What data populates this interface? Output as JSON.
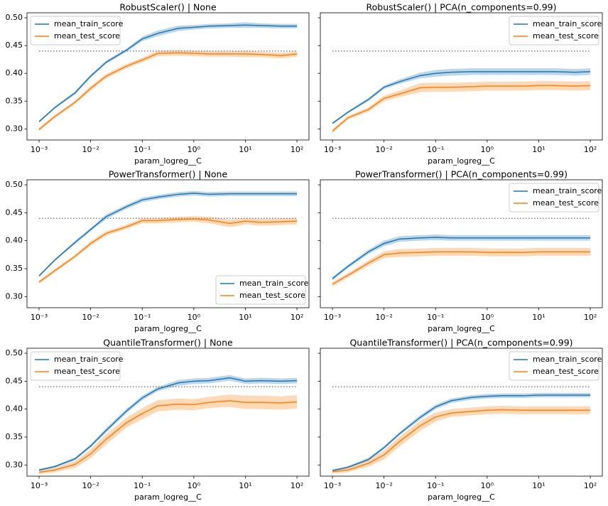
{
  "chart_data": [
    {
      "type": "line",
      "title": "RobustScaler() | None",
      "xlabel": "param_logreg__C",
      "xscale": "log",
      "legend": "upper left",
      "ytick_labels": true,
      "x": [
        0.001,
        0.002,
        0.005,
        0.01,
        0.02,
        0.05,
        0.1,
        0.2,
        0.5,
        1,
        2,
        5,
        10,
        20,
        50,
        100
      ],
      "xlim": [
        0.000583,
        171
      ],
      "ylim": [
        0.28,
        0.509
      ],
      "xticks": [
        {
          "value": 0.001,
          "label": "10⁻³"
        },
        {
          "value": 0.01,
          "label": "10⁻²"
        },
        {
          "value": 0.1,
          "label": "10⁻¹"
        },
        {
          "value": 1,
          "label": "10⁰"
        },
        {
          "value": 10,
          "label": "10¹"
        },
        {
          "value": 100,
          "label": "10²"
        }
      ],
      "yticks": [
        {
          "value": 0.3,
          "label": "0.30"
        },
        0.35,
        {
          "value": 0.4,
          "label": "0.40"
        },
        0.45,
        {
          "value": 0.5,
          "label": "0.50"
        }
      ],
      "hline": 0.44,
      "series": [
        {
          "name": "mean_train_score",
          "color": "#1f77b4",
          "values": [
            0.313,
            0.338,
            0.365,
            0.395,
            0.42,
            0.442,
            0.462,
            0.472,
            0.481,
            0.483,
            0.485,
            0.486,
            0.487,
            0.486,
            0.485,
            0.485
          ],
          "error": [
            0.002,
            0.002,
            0.003,
            0.003,
            0.003,
            0.003,
            0.004,
            0.005,
            0.005,
            0.004,
            0.004,
            0.004,
            0.005,
            0.004,
            0.004,
            0.004
          ]
        },
        {
          "name": "mean_test_score",
          "color": "#ff7f0e",
          "values": [
            0.299,
            0.322,
            0.348,
            0.373,
            0.395,
            0.413,
            0.424,
            0.436,
            0.437,
            0.436,
            0.435,
            0.435,
            0.435,
            0.434,
            0.432,
            0.435
          ],
          "error": [
            0.003,
            0.003,
            0.003,
            0.004,
            0.004,
            0.004,
            0.004,
            0.005,
            0.005,
            0.005,
            0.005,
            0.005,
            0.006,
            0.005,
            0.005,
            0.005
          ]
        }
      ]
    },
    {
      "type": "line",
      "title": "RobustScaler() | PCA(n_components=0.99)",
      "xlabel": "param_logreg__C",
      "xscale": "log",
      "legend": "upper right",
      "ytick_labels": false,
      "x": [
        0.001,
        0.002,
        0.005,
        0.01,
        0.02,
        0.05,
        0.1,
        0.2,
        0.5,
        1,
        2,
        5,
        10,
        20,
        50,
        100
      ],
      "xlim": [
        0.000583,
        171
      ],
      "ylim": [
        0.28,
        0.509
      ],
      "xticks": [
        {
          "value": 0.001,
          "label": "10⁻³"
        },
        {
          "value": 0.01,
          "label": "10⁻²"
        },
        {
          "value": 0.1,
          "label": "10⁻¹"
        },
        {
          "value": 1,
          "label": "10⁰"
        },
        {
          "value": 10,
          "label": "10¹"
        },
        {
          "value": 100,
          "label": "10²"
        }
      ],
      "yticks": [
        0.3,
        0.35,
        0.4,
        0.45,
        0.5
      ],
      "hline": 0.44,
      "series": [
        {
          "name": "mean_train_score",
          "color": "#1f77b4",
          "values": [
            0.31,
            0.33,
            0.353,
            0.375,
            0.385,
            0.396,
            0.4,
            0.402,
            0.403,
            0.403,
            0.403,
            0.403,
            0.403,
            0.403,
            0.402,
            0.403
          ],
          "error": [
            0.002,
            0.002,
            0.003,
            0.003,
            0.004,
            0.005,
            0.006,
            0.006,
            0.006,
            0.006,
            0.006,
            0.006,
            0.006,
            0.006,
            0.006,
            0.006
          ]
        },
        {
          "name": "mean_test_score",
          "color": "#ff7f0e",
          "values": [
            0.296,
            0.32,
            0.335,
            0.355,
            0.363,
            0.374,
            0.375,
            0.375,
            0.376,
            0.377,
            0.377,
            0.377,
            0.378,
            0.378,
            0.377,
            0.378
          ],
          "error": [
            0.003,
            0.003,
            0.004,
            0.005,
            0.006,
            0.008,
            0.008,
            0.008,
            0.008,
            0.008,
            0.008,
            0.008,
            0.008,
            0.008,
            0.008,
            0.008
          ]
        }
      ]
    },
    {
      "type": "line",
      "title": "PowerTransformer() | None",
      "xlabel": "param_logreg__C",
      "xscale": "log",
      "legend": "lower right",
      "ytick_labels": true,
      "x": [
        0.001,
        0.002,
        0.005,
        0.01,
        0.02,
        0.05,
        0.1,
        0.2,
        0.5,
        1,
        2,
        5,
        10,
        20,
        50,
        100
      ],
      "xlim": [
        0.000583,
        171
      ],
      "ylim": [
        0.28,
        0.509
      ],
      "xticks": [
        {
          "value": 0.001,
          "label": "10⁻³"
        },
        {
          "value": 0.01,
          "label": "10⁻²"
        },
        {
          "value": 0.1,
          "label": "10⁻¹"
        },
        {
          "value": 1,
          "label": "10⁰"
        },
        {
          "value": 10,
          "label": "10¹"
        },
        {
          "value": 100,
          "label": "10²"
        }
      ],
      "yticks": [
        {
          "value": 0.3,
          "label": "0.30"
        },
        0.35,
        {
          "value": 0.4,
          "label": "0.40"
        },
        0.45,
        {
          "value": 0.5,
          "label": "0.50"
        }
      ],
      "hline": 0.44,
      "series": [
        {
          "name": "mean_train_score",
          "color": "#1f77b4",
          "values": [
            0.337,
            0.365,
            0.397,
            0.42,
            0.443,
            0.461,
            0.473,
            0.478,
            0.483,
            0.485,
            0.483,
            0.484,
            0.484,
            0.484,
            0.484,
            0.484
          ],
          "error": [
            0.002,
            0.002,
            0.003,
            0.003,
            0.004,
            0.004,
            0.004,
            0.004,
            0.004,
            0.004,
            0.004,
            0.004,
            0.004,
            0.004,
            0.004,
            0.004
          ]
        },
        {
          "name": "mean_test_score",
          "color": "#ff7f0e",
          "values": [
            0.326,
            0.346,
            0.372,
            0.395,
            0.413,
            0.425,
            0.436,
            0.436,
            0.438,
            0.439,
            0.437,
            0.431,
            0.435,
            0.433,
            0.434,
            0.435
          ],
          "error": [
            0.003,
            0.003,
            0.003,
            0.004,
            0.004,
            0.004,
            0.005,
            0.005,
            0.005,
            0.005,
            0.006,
            0.007,
            0.006,
            0.006,
            0.006,
            0.006
          ]
        }
      ]
    },
    {
      "type": "line",
      "title": "PowerTransformer() | PCA(n_components=0.99)",
      "xlabel": "param_logreg__C",
      "xscale": "log",
      "legend": "upper right",
      "ytick_labels": false,
      "x": [
        0.001,
        0.002,
        0.005,
        0.01,
        0.02,
        0.05,
        0.1,
        0.2,
        0.5,
        1,
        2,
        5,
        10,
        20,
        50,
        100
      ],
      "xlim": [
        0.000583,
        171
      ],
      "ylim": [
        0.28,
        0.509
      ],
      "xticks": [
        {
          "value": 0.001,
          "label": "10⁻³"
        },
        {
          "value": 0.01,
          "label": "10⁻²"
        },
        {
          "value": 0.1,
          "label": "10⁻¹"
        },
        {
          "value": 1,
          "label": "10⁰"
        },
        {
          "value": 10,
          "label": "10¹"
        },
        {
          "value": 100,
          "label": "10²"
        }
      ],
      "yticks": [
        0.3,
        0.35,
        0.4,
        0.45,
        0.5
      ],
      "hline": 0.44,
      "series": [
        {
          "name": "mean_train_score",
          "color": "#1f77b4",
          "values": [
            0.332,
            0.354,
            0.38,
            0.395,
            0.403,
            0.405,
            0.406,
            0.405,
            0.405,
            0.405,
            0.405,
            0.405,
            0.405,
            0.405,
            0.405,
            0.405
          ],
          "error": [
            0.003,
            0.003,
            0.004,
            0.005,
            0.005,
            0.005,
            0.005,
            0.005,
            0.005,
            0.005,
            0.005,
            0.005,
            0.005,
            0.005,
            0.005,
            0.005
          ]
        },
        {
          "name": "mean_test_score",
          "color": "#ff7f0e",
          "values": [
            0.322,
            0.338,
            0.36,
            0.375,
            0.378,
            0.379,
            0.38,
            0.38,
            0.38,
            0.379,
            0.379,
            0.379,
            0.38,
            0.38,
            0.38,
            0.38
          ],
          "error": [
            0.004,
            0.004,
            0.005,
            0.006,
            0.007,
            0.007,
            0.007,
            0.007,
            0.007,
            0.007,
            0.007,
            0.007,
            0.007,
            0.007,
            0.007,
            0.007
          ]
        }
      ]
    },
    {
      "type": "line",
      "title": "QuantileTransformer() | None",
      "xlabel": "param_logreg__C",
      "xscale": "log",
      "legend": "upper left",
      "ytick_labels": true,
      "x": [
        0.001,
        0.002,
        0.005,
        0.01,
        0.02,
        0.05,
        0.1,
        0.2,
        0.5,
        1,
        2,
        5,
        10,
        20,
        50,
        100
      ],
      "xlim": [
        0.000583,
        171
      ],
      "ylim": [
        0.28,
        0.509
      ],
      "xticks": [
        {
          "value": 0.001,
          "label": "10⁻³"
        },
        {
          "value": 0.01,
          "label": "10⁻²"
        },
        {
          "value": 0.1,
          "label": "10⁻¹"
        },
        {
          "value": 1,
          "label": "10⁰"
        },
        {
          "value": 10,
          "label": "10¹"
        },
        {
          "value": 100,
          "label": "10²"
        }
      ],
      "yticks": [
        {
          "value": 0.3,
          "label": "0.30"
        },
        0.35,
        {
          "value": 0.4,
          "label": "0.40"
        },
        0.45,
        {
          "value": 0.5,
          "label": "0.50"
        }
      ],
      "hline": 0.44,
      "series": [
        {
          "name": "mean_train_score",
          "color": "#1f77b4",
          "values": [
            0.291,
            0.297,
            0.311,
            0.334,
            0.362,
            0.397,
            0.42,
            0.436,
            0.447,
            0.45,
            0.451,
            0.456,
            0.45,
            0.451,
            0.45,
            0.451
          ],
          "error": [
            0.002,
            0.002,
            0.003,
            0.003,
            0.004,
            0.004,
            0.004,
            0.004,
            0.005,
            0.005,
            0.005,
            0.005,
            0.005,
            0.005,
            0.005,
            0.005
          ]
        },
        {
          "name": "mean_test_score",
          "color": "#ff7f0e",
          "values": [
            0.287,
            0.291,
            0.301,
            0.32,
            0.346,
            0.376,
            0.392,
            0.406,
            0.409,
            0.408,
            0.412,
            0.415,
            0.412,
            0.412,
            0.411,
            0.413
          ],
          "error": [
            0.003,
            0.004,
            0.006,
            0.008,
            0.009,
            0.009,
            0.01,
            0.01,
            0.01,
            0.01,
            0.01,
            0.011,
            0.012,
            0.012,
            0.012,
            0.012
          ]
        }
      ]
    },
    {
      "type": "line",
      "title": "QuantileTransformer() | PCA(n_components=0.99)",
      "xlabel": "param_logreg__C",
      "xscale": "log",
      "legend": "upper right",
      "ytick_labels": false,
      "x": [
        0.001,
        0.002,
        0.005,
        0.01,
        0.02,
        0.05,
        0.1,
        0.2,
        0.5,
        1,
        2,
        5,
        10,
        20,
        50,
        100
      ],
      "xlim": [
        0.000583,
        171
      ],
      "ylim": [
        0.28,
        0.509
      ],
      "xticks": [
        {
          "value": 0.001,
          "label": "10⁻³"
        },
        {
          "value": 0.01,
          "label": "10⁻²"
        },
        {
          "value": 0.1,
          "label": "10⁻¹"
        },
        {
          "value": 1,
          "label": "10⁰"
        },
        {
          "value": 10,
          "label": "10¹"
        },
        {
          "value": 100,
          "label": "10²"
        }
      ],
      "yticks": [
        0.3,
        0.35,
        0.4,
        0.45,
        0.5
      ],
      "hline": 0.44,
      "series": [
        {
          "name": "mean_train_score",
          "color": "#1f77b4",
          "values": [
            0.29,
            0.296,
            0.31,
            0.331,
            0.356,
            0.385,
            0.404,
            0.415,
            0.421,
            0.423,
            0.424,
            0.424,
            0.425,
            0.425,
            0.425,
            0.425
          ],
          "error": [
            0.002,
            0.002,
            0.003,
            0.003,
            0.003,
            0.004,
            0.004,
            0.004,
            0.004,
            0.004,
            0.004,
            0.004,
            0.004,
            0.004,
            0.004,
            0.004
          ]
        },
        {
          "name": "mean_test_score",
          "color": "#ff7f0e",
          "values": [
            0.288,
            0.291,
            0.303,
            0.318,
            0.342,
            0.37,
            0.386,
            0.393,
            0.396,
            0.398,
            0.399,
            0.398,
            0.398,
            0.398,
            0.398,
            0.398
          ],
          "error": [
            0.003,
            0.004,
            0.006,
            0.008,
            0.009,
            0.009,
            0.008,
            0.007,
            0.007,
            0.007,
            0.007,
            0.007,
            0.007,
            0.007,
            0.007,
            0.007
          ]
        }
      ]
    }
  ]
}
